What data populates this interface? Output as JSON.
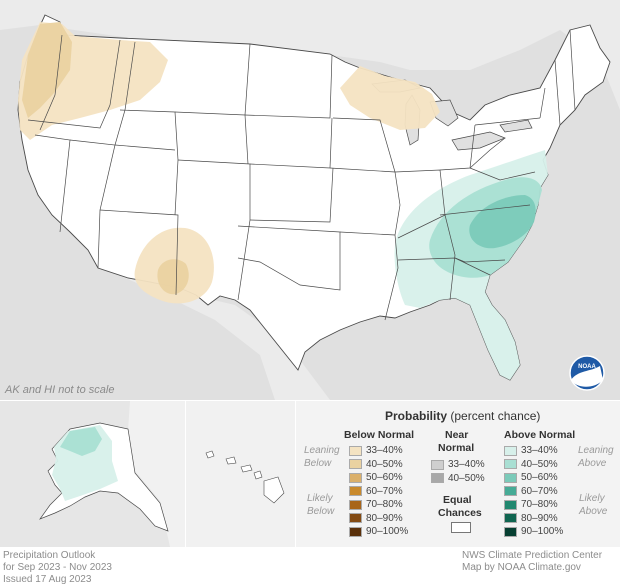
{
  "map": {
    "ak_hi_note": "AK and HI not to scale",
    "logo": "noaa-logo",
    "colors": {
      "background": "#e0e0e0",
      "land": "#ffffff",
      "borders": "#4a4a4a",
      "below_33_40": "#f4e3c2",
      "below_40_50": "#ead2a1",
      "above_33_40": "#d7f0ea",
      "above_40_50": "#a9dfd3",
      "above_50_60": "#7bcab9"
    }
  },
  "footer": {
    "left_line1": "Precipitation Outlook",
    "left_line2": "for Sep 2023 - Nov 2023",
    "left_line3": "Issued 17 Aug 2023",
    "right_line1": "NWS Climate Prediction Center",
    "right_line2": "Map by NOAA Climate.gov"
  },
  "legend": {
    "title": "Probability",
    "title_sub": "(percent chance)",
    "below_header": "Below Normal",
    "near_header_1": "Near",
    "near_header_2": "Normal",
    "above_header": "Above Normal",
    "leaning_1": "Leaning",
    "leaning_below_2": "Below",
    "leaning_above_2": "Above",
    "likely_1": "Likely",
    "likely_below_2": "Below",
    "likely_above_2": "Above",
    "equal_1": "Equal",
    "equal_2": "Chances",
    "below": [
      {
        "label": "33–40%",
        "color": "#f4e3c2"
      },
      {
        "label": "40–50%",
        "color": "#ead2a1"
      },
      {
        "label": "50–60%",
        "color": "#dbb06a"
      },
      {
        "label": "60–70%",
        "color": "#c98a2c"
      },
      {
        "label": "70–80%",
        "color": "#a8651a"
      },
      {
        "label": "80–90%",
        "color": "#834a12"
      },
      {
        "label": "90–100%",
        "color": "#5a300a"
      }
    ],
    "near": [
      {
        "label": "33–40%",
        "color": "#cfcfcf"
      },
      {
        "label": "40–50%",
        "color": "#a8a8a8"
      }
    ],
    "above": [
      {
        "label": "33–40%",
        "color": "#d7f0ea"
      },
      {
        "label": "40–50%",
        "color": "#a9dfd3"
      },
      {
        "label": "50–60%",
        "color": "#7bcab9"
      },
      {
        "label": "60–70%",
        "color": "#46ab96"
      },
      {
        "label": "70–80%",
        "color": "#21876f"
      },
      {
        "label": "80–90%",
        "color": "#0f6550"
      },
      {
        "label": "90–100%",
        "color": "#063f31"
      }
    ]
  }
}
